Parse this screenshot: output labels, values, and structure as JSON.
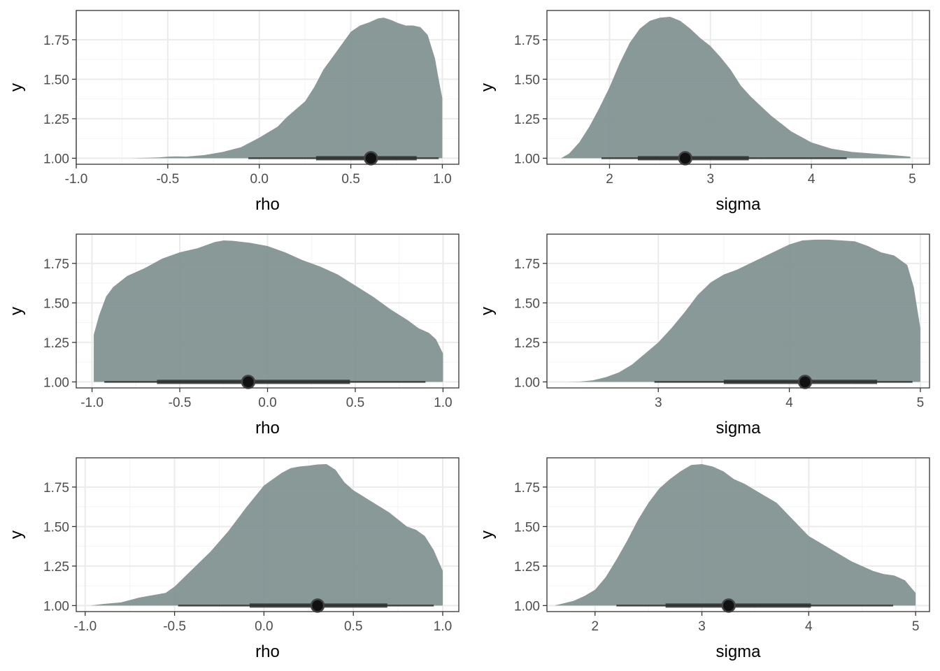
{
  "colors": {
    "fill": "#7f908f",
    "interval": "#2f2f2f",
    "point": "#111111",
    "grid_major": "#ebebeb",
    "grid_minor": "#f4f4f4",
    "border": "#333333"
  },
  "chart_data": [
    {
      "type": "area",
      "xlabel": "rho",
      "ylabel": "y",
      "xlim": [
        -1,
        1
      ],
      "ylim": [
        1,
        1.9
      ],
      "xticks": [
        "-1.0",
        "-0.5",
        "0.0",
        "0.5",
        "1.0"
      ],
      "yticks": [
        "1.00",
        "1.25",
        "1.50",
        "1.75"
      ],
      "grid": true,
      "density": {
        "x": [
          -0.93,
          -0.7,
          -0.55,
          -0.5,
          -0.46,
          -0.4,
          -0.3,
          -0.2,
          -0.1,
          0.0,
          0.1,
          0.15,
          0.25,
          0.3,
          0.35,
          0.4,
          0.45,
          0.5,
          0.55,
          0.6,
          0.65,
          0.68,
          0.72,
          0.76,
          0.8,
          0.84,
          0.88,
          0.92,
          0.96,
          0.98,
          1.0
        ],
        "y": [
          1.0,
          1.0,
          1.005,
          1.01,
          1.012,
          1.01,
          1.02,
          1.04,
          1.07,
          1.13,
          1.2,
          1.26,
          1.36,
          1.45,
          1.56,
          1.64,
          1.72,
          1.8,
          1.84,
          1.86,
          1.885,
          1.89,
          1.875,
          1.855,
          1.84,
          1.84,
          1.83,
          1.78,
          1.63,
          1.5,
          1.38
        ]
      },
      "point": 0.61,
      "inner_interval": [
        0.31,
        0.86
      ],
      "outer_interval": [
        -0.06,
        0.98
      ]
    },
    {
      "type": "area",
      "xlabel": "sigma",
      "ylabel": "y",
      "xlim": [
        1.5,
        5.0
      ],
      "ylim": [
        1,
        1.9
      ],
      "xticks": [
        "2",
        "3",
        "4",
        "5"
      ],
      "yticks": [
        "1.00",
        "1.25",
        "1.50",
        "1.75"
      ],
      "grid": true,
      "density": {
        "x": [
          1.52,
          1.6,
          1.7,
          1.8,
          1.9,
          2.0,
          2.1,
          2.2,
          2.3,
          2.4,
          2.5,
          2.6,
          2.7,
          2.8,
          2.9,
          3.0,
          3.1,
          3.2,
          3.3,
          3.4,
          3.6,
          3.8,
          4.0,
          4.2,
          4.4,
          4.6,
          4.8,
          4.98
        ],
        "y": [
          1.0,
          1.03,
          1.1,
          1.2,
          1.32,
          1.45,
          1.6,
          1.73,
          1.82,
          1.87,
          1.89,
          1.895,
          1.87,
          1.82,
          1.76,
          1.71,
          1.64,
          1.56,
          1.46,
          1.39,
          1.27,
          1.17,
          1.1,
          1.06,
          1.04,
          1.03,
          1.02,
          1.01
        ]
      },
      "point": 2.75,
      "inner_interval": [
        2.28,
        3.38
      ],
      "outer_interval": [
        1.92,
        4.35
      ]
    },
    {
      "type": "area",
      "xlabel": "rho",
      "ylabel": "y",
      "xlim": [
        -1,
        1
      ],
      "ylim": [
        1,
        1.9
      ],
      "xticks": [
        "-1.0",
        "-0.5",
        "0.0",
        "0.5",
        "1.0"
      ],
      "yticks": [
        "1.00",
        "1.25",
        "1.50",
        "1.75"
      ],
      "grid": true,
      "density": {
        "x": [
          -0.99,
          -0.96,
          -0.92,
          -0.88,
          -0.8,
          -0.7,
          -0.6,
          -0.5,
          -0.4,
          -0.3,
          -0.25,
          -0.2,
          -0.1,
          0.0,
          0.1,
          0.2,
          0.3,
          0.4,
          0.5,
          0.6,
          0.7,
          0.8,
          0.86,
          0.92,
          0.96,
          1.0
        ],
        "y": [
          1.3,
          1.42,
          1.54,
          1.6,
          1.67,
          1.72,
          1.78,
          1.82,
          1.845,
          1.885,
          1.895,
          1.893,
          1.88,
          1.86,
          1.82,
          1.77,
          1.73,
          1.68,
          1.61,
          1.54,
          1.46,
          1.39,
          1.34,
          1.31,
          1.27,
          1.18
        ]
      },
      "point": -0.11,
      "inner_interval": [
        -0.63,
        0.47
      ],
      "outer_interval": [
        -0.93,
        0.9
      ]
    },
    {
      "type": "area",
      "xlabel": "sigma",
      "ylabel": "y",
      "xlim": [
        2.2,
        5.0
      ],
      "ylim": [
        1,
        1.9
      ],
      "xticks": [
        "3",
        "4",
        "5"
      ],
      "yticks": [
        "1.00",
        "1.25",
        "1.50",
        "1.75"
      ],
      "grid": true,
      "density": {
        "x": [
          2.2,
          2.3,
          2.4,
          2.5,
          2.6,
          2.7,
          2.8,
          2.9,
          3.0,
          3.1,
          3.2,
          3.3,
          3.4,
          3.5,
          3.6,
          3.7,
          3.8,
          3.9,
          4.0,
          4.1,
          4.2,
          4.3,
          4.4,
          4.5,
          4.6,
          4.7,
          4.8,
          4.9,
          4.95,
          5.0
        ],
        "y": [
          1.0,
          1.0,
          1.002,
          1.01,
          1.03,
          1.06,
          1.11,
          1.18,
          1.25,
          1.34,
          1.44,
          1.55,
          1.63,
          1.68,
          1.71,
          1.75,
          1.79,
          1.83,
          1.87,
          1.895,
          1.9,
          1.9,
          1.895,
          1.89,
          1.86,
          1.82,
          1.8,
          1.74,
          1.6,
          1.34
        ]
      },
      "point": 4.12,
      "inner_interval": [
        3.5,
        4.67
      ],
      "outer_interval": [
        2.97,
        4.94
      ]
    },
    {
      "type": "area",
      "xlabel": "rho",
      "ylabel": "y",
      "xlim": [
        -1,
        1
      ],
      "ylim": [
        1,
        1.9
      ],
      "xticks": [
        "-1.0",
        "-0.5",
        "0.0",
        "0.5",
        "1.0"
      ],
      "yticks": [
        "1.00",
        "1.25",
        "1.50",
        "1.75"
      ],
      "grid": true,
      "density": {
        "x": [
          -0.97,
          -0.9,
          -0.8,
          -0.7,
          -0.65,
          -0.55,
          -0.5,
          -0.4,
          -0.3,
          -0.2,
          -0.1,
          0.0,
          0.1,
          0.15,
          0.2,
          0.25,
          0.3,
          0.35,
          0.4,
          0.45,
          0.5,
          0.6,
          0.7,
          0.8,
          0.85,
          0.9,
          0.95,
          1.0
        ],
        "y": [
          1.0,
          1.01,
          1.02,
          1.05,
          1.06,
          1.08,
          1.12,
          1.23,
          1.34,
          1.47,
          1.62,
          1.76,
          1.84,
          1.87,
          1.88,
          1.885,
          1.893,
          1.895,
          1.86,
          1.78,
          1.73,
          1.66,
          1.59,
          1.5,
          1.48,
          1.44,
          1.35,
          1.22
        ]
      },
      "point": 0.3,
      "inner_interval": [
        -0.08,
        0.69
      ],
      "outer_interval": [
        -0.48,
        0.95
      ]
    },
    {
      "type": "area",
      "xlabel": "sigma",
      "ylabel": "y",
      "xlim": [
        1.6,
        5.0
      ],
      "ylim": [
        1,
        1.9
      ],
      "xticks": [
        "2",
        "3",
        "4",
        "5"
      ],
      "yticks": [
        "1.00",
        "1.25",
        "1.50",
        "1.75"
      ],
      "grid": true,
      "density": {
        "x": [
          1.62,
          1.8,
          1.9,
          2.0,
          2.1,
          2.2,
          2.3,
          2.4,
          2.5,
          2.6,
          2.7,
          2.8,
          2.9,
          3.0,
          3.1,
          3.2,
          3.3,
          3.4,
          3.5,
          3.6,
          3.7,
          3.8,
          3.9,
          4.0,
          4.2,
          4.4,
          4.6,
          4.7,
          4.8,
          4.9,
          5.0
        ],
        "y": [
          1.0,
          1.03,
          1.06,
          1.1,
          1.18,
          1.29,
          1.41,
          1.54,
          1.65,
          1.74,
          1.8,
          1.85,
          1.89,
          1.895,
          1.88,
          1.85,
          1.8,
          1.77,
          1.73,
          1.69,
          1.65,
          1.58,
          1.51,
          1.44,
          1.36,
          1.28,
          1.22,
          1.2,
          1.19,
          1.16,
          1.08
        ]
      },
      "point": 3.25,
      "inner_interval": [
        2.66,
        4.02
      ],
      "outer_interval": [
        2.2,
        4.79
      ]
    }
  ]
}
